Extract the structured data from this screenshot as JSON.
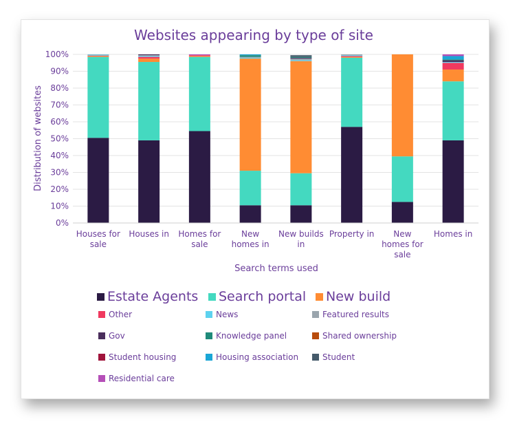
{
  "chart_data": {
    "type": "bar",
    "stacked": true,
    "title": "Websites appearing by type of site",
    "xlabel": "Search terms used",
    "ylabel": "Distribution of websites",
    "ylim": [
      0,
      100
    ],
    "yticks": [
      "0%",
      "10%",
      "20%",
      "30%",
      "40%",
      "50%",
      "60%",
      "70%",
      "80%",
      "90%",
      "100%"
    ],
    "categories": [
      [
        "Houses for",
        "sale"
      ],
      [
        "Houses in"
      ],
      [
        "Homes for",
        "sale"
      ],
      [
        "New",
        "homes in"
      ],
      [
        "New builds",
        "in"
      ],
      [
        "Property in"
      ],
      [
        "New",
        "homes for",
        "sale"
      ],
      [
        "Homes in"
      ]
    ],
    "grid": true,
    "series": [
      {
        "name": "Estate Agents",
        "color": "#2b1b44",
        "values": [
          50.5,
          49,
          54.5,
          10.5,
          10.5,
          57,
          12.5,
          49
        ]
      },
      {
        "name": "Search portal",
        "color": "#44d9c0",
        "values": [
          48,
          46.5,
          44,
          20.5,
          19,
          41,
          27,
          35
        ]
      },
      {
        "name": "New build",
        "color": "#ff8c33",
        "values": [
          0.5,
          2,
          0.5,
          66.5,
          66.5,
          0.5,
          60.5,
          7
        ]
      },
      {
        "name": "Other",
        "color": "#f0395f",
        "values": [
          0.3,
          1,
          0.5,
          0,
          0,
          0.5,
          0,
          4
        ]
      },
      {
        "name": "News",
        "color": "#5dd2ef",
        "values": [
          0.5,
          0.5,
          0,
          0.5,
          0.5,
          0.5,
          0,
          0.5
        ]
      },
      {
        "name": "Featured results",
        "color": "#9aa5ad",
        "values": [
          0.2,
          0.5,
          0,
          0.5,
          1,
          0.5,
          0,
          0
        ]
      },
      {
        "name": "Gov",
        "color": "#4a2e5c",
        "values": [
          0,
          0.5,
          0,
          0,
          0.5,
          0,
          0,
          1
        ]
      },
      {
        "name": "Knowledge panel",
        "color": "#1f8a7a",
        "values": [
          0,
          0,
          0,
          1,
          0.5,
          0,
          0,
          0.5
        ]
      },
      {
        "name": "Shared ownership",
        "color": "#b84c0c",
        "values": [
          0,
          0,
          0,
          0,
          0,
          0,
          0,
          0
        ]
      },
      {
        "name": "Student housing",
        "color": "#a0143c",
        "values": [
          0,
          0,
          0,
          0,
          0,
          0,
          0,
          0
        ]
      },
      {
        "name": "Housing association",
        "color": "#1aa6d6",
        "values": [
          0,
          0,
          0,
          0.5,
          0,
          0,
          0,
          2
        ]
      },
      {
        "name": "Student",
        "color": "#455a6a",
        "values": [
          0,
          0,
          0,
          0,
          1,
          0,
          0,
          0
        ]
      },
      {
        "name": "Residential care",
        "color": "#b54fb8",
        "values": [
          0,
          0,
          0.5,
          0,
          0,
          0,
          0,
          1
        ]
      }
    ],
    "legend": {
      "placement": "bottom",
      "primary": [
        "Estate Agents",
        "Search portal",
        "New build"
      ],
      "secondary": [
        "Other",
        "News",
        "Featured results",
        "Gov",
        "Knowledge panel",
        "Shared ownership",
        "Student housing",
        "Housing association",
        "Student",
        "Residential care"
      ]
    }
  }
}
